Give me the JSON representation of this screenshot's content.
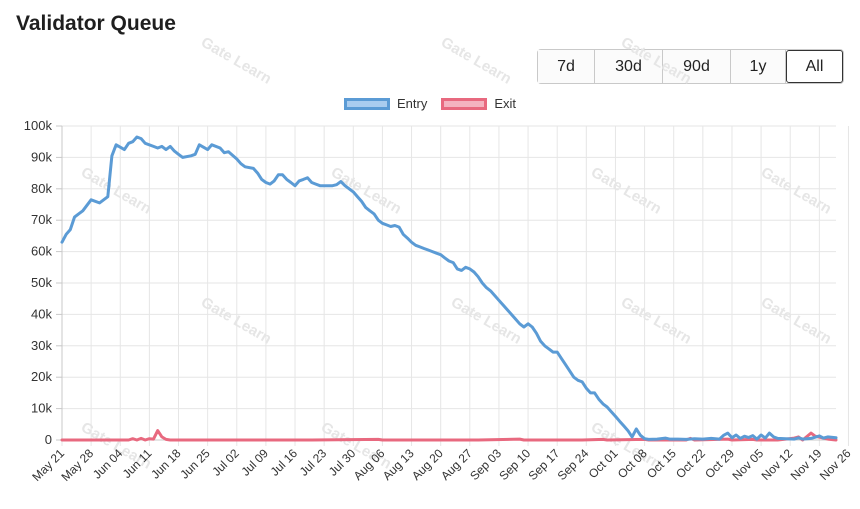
{
  "header": {
    "title": "Validator Queue"
  },
  "range_buttons": [
    {
      "label": "7d",
      "active": false
    },
    {
      "label": "30d",
      "active": false
    },
    {
      "label": "90d",
      "active": false
    },
    {
      "label": "1y",
      "active": false
    },
    {
      "label": "All",
      "active": true
    }
  ],
  "watermark_text": "Gate Learn",
  "colors": {
    "entry": "#5b9bd5",
    "exit": "#e8697f",
    "grid": "#e6e6e6"
  },
  "chart_data": {
    "type": "line",
    "title": "",
    "xlabel": "",
    "ylabel": "",
    "ylim": [
      0,
      100000
    ],
    "grid": true,
    "legend": "top-center",
    "y_ticks": [
      "0",
      "10k",
      "20k",
      "30k",
      "40k",
      "50k",
      "60k",
      "70k",
      "80k",
      "90k",
      "100k"
    ],
    "x_ticks": [
      "May 21",
      "May 28",
      "Jun 04",
      "Jun 11",
      "Jun 18",
      "Jun 25",
      "Jul 02",
      "Jul 09",
      "Jul 16",
      "Jul 23",
      "Jul 30",
      "Aug 06",
      "Aug 13",
      "Aug 20",
      "Aug 27",
      "Sep 03",
      "Sep 10",
      "Sep 17",
      "Sep 24",
      "Oct 01",
      "Oct 08",
      "Oct 15",
      "Oct 22",
      "Oct 29",
      "Nov 05",
      "Nov 12",
      "Nov 19",
      "Nov 26"
    ],
    "series": [
      {
        "name": "Entry",
        "color": "#5b9bd5",
        "points": [
          [
            0,
            63000
          ],
          [
            1,
            65500
          ],
          [
            2,
            67000
          ],
          [
            3,
            71000
          ],
          [
            4,
            72000
          ],
          [
            5,
            73000
          ],
          [
            7,
            76500
          ],
          [
            9,
            75500
          ],
          [
            11,
            77500
          ],
          [
            12,
            90500
          ],
          [
            13,
            94000
          ],
          [
            15,
            92500
          ],
          [
            16,
            94500
          ],
          [
            17,
            95000
          ],
          [
            18,
            96500
          ],
          [
            19,
            96000
          ],
          [
            20,
            94500
          ],
          [
            22,
            93500
          ],
          [
            23,
            93000
          ],
          [
            24,
            93500
          ],
          [
            25,
            92500
          ],
          [
            26,
            93500
          ],
          [
            27,
            92000
          ],
          [
            28,
            91000
          ],
          [
            29,
            90000
          ],
          [
            31,
            90500
          ],
          [
            32,
            91000
          ],
          [
            33,
            94000
          ],
          [
            35,
            92500
          ],
          [
            36,
            94000
          ],
          [
            38,
            93000
          ],
          [
            39,
            91500
          ],
          [
            40,
            91800
          ],
          [
            42,
            89500
          ],
          [
            43,
            88000
          ],
          [
            44,
            87000
          ],
          [
            46,
            86500
          ],
          [
            47,
            85000
          ],
          [
            48,
            83000
          ],
          [
            49,
            82000
          ],
          [
            50,
            81500
          ],
          [
            51,
            82500
          ],
          [
            52,
            84500
          ],
          [
            53,
            84500
          ],
          [
            54,
            83000
          ],
          [
            55,
            82000
          ],
          [
            56,
            81000
          ],
          [
            57,
            82500
          ],
          [
            58,
            83000
          ],
          [
            59,
            83500
          ],
          [
            60,
            82000
          ],
          [
            61,
            81500
          ],
          [
            62,
            81000
          ],
          [
            64,
            81000
          ],
          [
            65,
            81000
          ],
          [
            66,
            81300
          ],
          [
            67,
            82300
          ],
          [
            68,
            81000
          ],
          [
            70,
            79000
          ],
          [
            71,
            77500
          ],
          [
            72,
            76000
          ],
          [
            73,
            74000
          ],
          [
            74,
            73000
          ],
          [
            75,
            72000
          ],
          [
            76,
            70000
          ],
          [
            77,
            69000
          ],
          [
            78,
            68500
          ],
          [
            79,
            68000
          ],
          [
            80,
            68300
          ],
          [
            81,
            67800
          ],
          [
            82,
            65500
          ],
          [
            83,
            64300
          ],
          [
            84,
            63000
          ],
          [
            85,
            62000
          ],
          [
            86,
            61500
          ],
          [
            87,
            61000
          ],
          [
            88,
            60500
          ],
          [
            89,
            60000
          ],
          [
            90,
            59500
          ],
          [
            91,
            59000
          ],
          [
            92,
            58000
          ],
          [
            93,
            57000
          ],
          [
            94,
            56500
          ],
          [
            95,
            54500
          ],
          [
            96,
            54000
          ],
          [
            97,
            55000
          ],
          [
            98,
            54500
          ],
          [
            99,
            53500
          ],
          [
            100,
            52000
          ],
          [
            101,
            50000
          ],
          [
            102,
            48500
          ],
          [
            103,
            47500
          ],
          [
            104,
            46000
          ],
          [
            105,
            44500
          ],
          [
            106,
            43000
          ],
          [
            107,
            41500
          ],
          [
            108,
            40000
          ],
          [
            109,
            38500
          ],
          [
            110,
            37000
          ],
          [
            111,
            36000
          ],
          [
            112,
            37000
          ],
          [
            113,
            36000
          ],
          [
            114,
            34000
          ],
          [
            115,
            31500
          ],
          [
            116,
            30000
          ],
          [
            117,
            29000
          ],
          [
            118,
            28000
          ],
          [
            119,
            28000
          ],
          [
            120,
            26000
          ],
          [
            121,
            24000
          ],
          [
            122,
            22000
          ],
          [
            123,
            20000
          ],
          [
            124,
            19000
          ],
          [
            125,
            18500
          ],
          [
            126,
            16500
          ],
          [
            127,
            15000
          ],
          [
            128,
            15000
          ],
          [
            129,
            13000
          ],
          [
            130,
            11500
          ],
          [
            131,
            10500
          ],
          [
            132,
            9000
          ],
          [
            133,
            7500
          ],
          [
            134,
            6000
          ],
          [
            135,
            4500
          ],
          [
            136,
            3000
          ],
          [
            137,
            1000
          ],
          [
            138,
            3500
          ],
          [
            139,
            1500
          ],
          [
            140,
            400
          ],
          [
            141,
            200
          ],
          [
            143,
            300
          ],
          [
            145,
            600
          ],
          [
            146,
            300
          ],
          [
            148,
            300
          ],
          [
            150,
            200
          ],
          [
            152,
            400
          ],
          [
            154,
            300
          ],
          [
            156,
            500
          ],
          [
            158,
            300
          ],
          [
            159,
            1500
          ],
          [
            160,
            2200
          ],
          [
            161,
            700
          ],
          [
            162,
            1600
          ],
          [
            163,
            500
          ],
          [
            164,
            1200
          ],
          [
            165,
            800
          ],
          [
            166,
            1400
          ],
          [
            167,
            300
          ],
          [
            168,
            1600
          ],
          [
            169,
            600
          ],
          [
            170,
            2200
          ],
          [
            171,
            1000
          ],
          [
            172,
            500
          ],
          [
            174,
            400
          ],
          [
            176,
            300
          ],
          [
            177,
            700
          ],
          [
            178,
            300
          ],
          [
            180,
            500
          ],
          [
            182,
            1300
          ],
          [
            183,
            600
          ],
          [
            184,
            1000
          ],
          [
            186,
            700
          ]
        ]
      },
      {
        "name": "Exit",
        "color": "#e8697f",
        "points": [
          [
            0,
            0
          ],
          [
            16,
            0
          ],
          [
            17,
            400
          ],
          [
            18,
            0
          ],
          [
            19,
            500
          ],
          [
            20,
            0
          ],
          [
            21,
            400
          ],
          [
            22,
            300
          ],
          [
            23,
            3000
          ],
          [
            24,
            1000
          ],
          [
            25,
            200
          ],
          [
            26,
            0
          ],
          [
            40,
            0
          ],
          [
            60,
            0
          ],
          [
            76,
            200
          ],
          [
            77,
            0
          ],
          [
            90,
            0
          ],
          [
            100,
            0
          ],
          [
            110,
            300
          ],
          [
            111,
            0
          ],
          [
            125,
            0
          ],
          [
            130,
            200
          ],
          [
            131,
            0
          ],
          [
            140,
            200
          ],
          [
            141,
            0
          ],
          [
            150,
            0
          ],
          [
            151,
            500
          ],
          [
            152,
            0
          ],
          [
            160,
            300
          ],
          [
            161,
            0
          ],
          [
            166,
            200
          ],
          [
            167,
            0
          ],
          [
            172,
            0
          ],
          [
            176,
            600
          ],
          [
            177,
            1000
          ],
          [
            178,
            0
          ],
          [
            180,
            2200
          ],
          [
            181,
            1200
          ],
          [
            182,
            900
          ],
          [
            184,
            300
          ],
          [
            186,
            0
          ]
        ]
      }
    ]
  }
}
